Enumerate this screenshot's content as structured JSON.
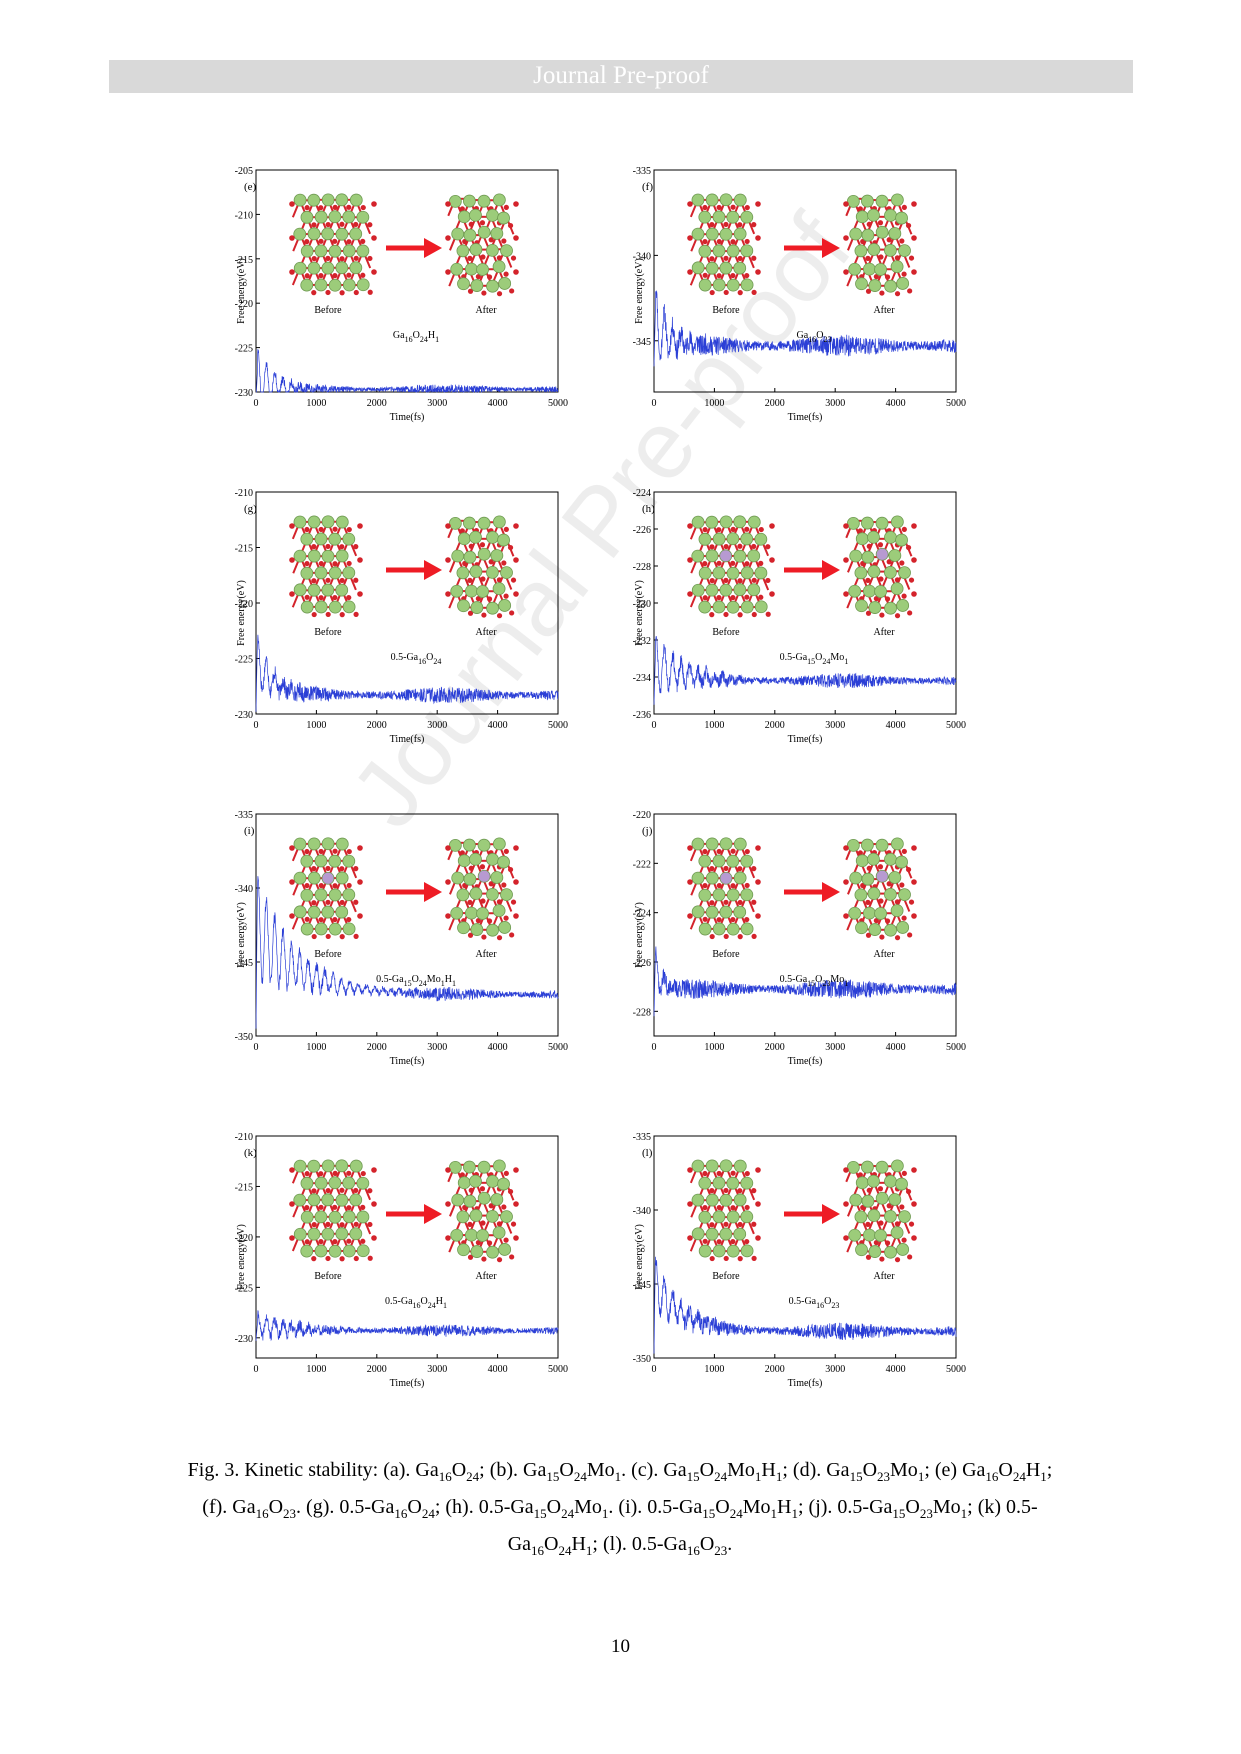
{
  "banner": "Journal Pre-proof",
  "watermark": "Journal Pre-proof",
  "page_number": "10",
  "caption": {
    "html": "Fig. 3. Kinetic stability: (a). Ga<sub>16</sub>O<sub>24</sub>; (b). Ga<sub>15</sub>O<sub>24</sub>Mo<sub>1</sub>. (c). Ga<sub>15</sub>O<sub>24</sub>Mo<sub>1</sub>H<sub>1</sub>; (d). Ga<sub>15</sub>O<sub>23</sub>Mo<sub>1</sub>; (e) Ga<sub>16</sub>O<sub>24</sub>H<sub>1</sub>; (f). Ga<sub>16</sub>O<sub>23</sub>. (g). 0.5-Ga<sub>16</sub>O<sub>24</sub>; (h). 0.5-Ga<sub>15</sub>O<sub>24</sub>Mo<sub>1</sub>. (i). 0.5-Ga<sub>15</sub>O<sub>24</sub>Mo<sub>1</sub>H<sub>1</sub>; (j). 0.5-Ga<sub>15</sub>O<sub>23</sub>Mo<sub>1</sub>; (k) 0.5-Ga<sub>16</sub>O<sub>24</sub>H<sub>1</sub>; (l). 0.5-Ga<sub>16</sub>O<sub>23</sub>."
  },
  "colors": {
    "series": "#2b3fd6",
    "arrow": "#ee1c25",
    "ga_atom": "#9ccc7a",
    "o_atom": "#d4232b",
    "mo_atom": "#b79ad1"
  },
  "inset_labels": {
    "before": "Before",
    "after": "After"
  },
  "chart_data": [
    {
      "id": "e",
      "type": "line",
      "panel_label": "(e)",
      "formula": "Ga<tspan font-size='8' dy='4'>16</tspan><tspan dy='-4'>O</tspan><tspan font-size='8' dy='4'>24</tspan><tspan dy='-4'>H</tspan><tspan font-size='8' dy='4'>1</tspan>",
      "xlabel": "Time(fs)",
      "ylabel": "Free energy(eV)",
      "xlim": [
        0,
        5000
      ],
      "ylim": [
        -230,
        -205
      ],
      "xticks": [
        0,
        1000,
        2000,
        3000,
        4000,
        5000
      ],
      "yticks": [
        -230,
        -225,
        -220,
        -215,
        -210,
        -205
      ],
      "series": {
        "initial": -227.5,
        "final": -229.7,
        "noise": 0.55,
        "transient_amp": 3.5,
        "transient_fs": 320,
        "dip": -231,
        "seed": 5
      }
    },
    {
      "id": "f",
      "type": "line",
      "panel_label": "(f)",
      "formula": "Ga<tspan font-size='8' dy='4'>16</tspan><tspan dy='-4'>O</tspan><tspan font-size='8' dy='4'>23</tspan>",
      "xlabel": "Time(fs)",
      "ylabel": "Free energy(eV)",
      "xlim": [
        0,
        5000
      ],
      "ylim": [
        -348,
        -335
      ],
      "xticks": [
        0,
        1000,
        2000,
        3000,
        4000,
        5000
      ],
      "yticks": [
        -345,
        -340,
        -335
      ],
      "series": {
        "initial": -343,
        "final": -345.3,
        "noise": 0.65,
        "transient_amp": 2.5,
        "transient_fs": 250,
        "dip": -346.5,
        "seed": 11
      }
    },
    {
      "id": "g",
      "type": "line",
      "panel_label": "(g)",
      "formula": "0.5-Ga<tspan font-size='8' dy='4'>16</tspan><tspan dy='-4'>O</tspan><tspan font-size='8' dy='4'>24</tspan>",
      "xlabel": "Time(fs)",
      "ylabel": "Free energy(eV)",
      "xlim": [
        0,
        5000
      ],
      "ylim": [
        -230,
        -210
      ],
      "xticks": [
        0,
        1000,
        2000,
        3000,
        4000,
        5000
      ],
      "yticks": [
        -230,
        -225,
        -220,
        -215,
        -210
      ],
      "series": {
        "initial": -223,
        "final": -228.3,
        "noise": 0.75,
        "transient_amp": 2.5,
        "transient_fs": 300,
        "dip": -229.8,
        "seed": 17
      }
    },
    {
      "id": "h",
      "type": "line",
      "panel_label": "(h)",
      "formula": "0.5-Ga<tspan font-size='8' dy='4'>15</tspan><tspan dy='-4'>O</tspan><tspan font-size='8' dy='4'>24</tspan><tspan dy='-4'>Mo</tspan><tspan font-size='8' dy='4'>1</tspan>",
      "xlabel": "Time(fs)",
      "ylabel": "Free energy(eV)",
      "xlim": [
        0,
        5000
      ],
      "ylim": [
        -236,
        -224
      ],
      "xticks": [
        0,
        1000,
        2000,
        3000,
        4000,
        5000
      ],
      "yticks": [
        -236,
        -234,
        -232,
        -230,
        -228,
        -226,
        -224
      ],
      "series": {
        "initial": -232.6,
        "final": -234.2,
        "noise": 0.4,
        "transient_amp": 1.6,
        "transient_fs": 500,
        "dip": -235.5,
        "seed": 23
      }
    },
    {
      "id": "i",
      "type": "line",
      "panel_label": "(i)",
      "formula": "0.5-Ga<tspan font-size='8' dy='4'>15</tspan><tspan dy='-4'>O</tspan><tspan font-size='8' dy='4'>24</tspan><tspan dy='-4'>Mo</tspan><tspan font-size='8' dy='4'>1</tspan><tspan dy='-4'>H</tspan><tspan font-size='8' dy='4'>1</tspan>",
      "xlabel": "Time(fs)",
      "ylabel": "Free energy(eV)",
      "xlim": [
        0,
        5000
      ],
      "ylim": [
        -350,
        -335
      ],
      "xticks": [
        0,
        1000,
        2000,
        3000,
        4000,
        5000
      ],
      "yticks": [
        -350,
        -345,
        -340,
        -335
      ],
      "series": {
        "initial": -339.5,
        "final": -347.2,
        "noise": 0.45,
        "transient_amp": 3.5,
        "transient_fs": 700,
        "dip": -349.5,
        "seed": 29
      }
    },
    {
      "id": "j",
      "type": "line",
      "panel_label": "(j)",
      "formula": "0.5-Ga<tspan font-size='8' dy='4'>15</tspan><tspan dy='-4'>O</tspan><tspan font-size='8' dy='4'>23</tspan><tspan dy='-4'>Mo</tspan><tspan font-size='8' dy='4'>1</tspan>",
      "xlabel": "Time(fs)",
      "ylabel": "Free energy(eV)",
      "xlim": [
        0,
        5000
      ],
      "ylim": [
        -229,
        -220
      ],
      "xticks": [
        0,
        1000,
        2000,
        3000,
        4000,
        5000
      ],
      "yticks": [
        -228,
        -226,
        -224,
        -222,
        -220
      ],
      "series": {
        "initial": -225.5,
        "final": -227.1,
        "noise": 0.4,
        "transient_amp": 1.2,
        "transient_fs": 120,
        "dip": -228.2,
        "seed": 37
      }
    },
    {
      "id": "k",
      "type": "line",
      "panel_label": "(k)",
      "formula": "0.5-Ga<tspan font-size='8' dy='4'>16</tspan><tspan dy='-4'>O</tspan><tspan font-size='8' dy='4'>24</tspan><tspan dy='-4'>H</tspan><tspan font-size='8' dy='4'>1</tspan>",
      "xlabel": "Time(fs)",
      "ylabel": "Free energy(eV)",
      "xlim": [
        0,
        5000
      ],
      "ylim": [
        -232,
        -210
      ],
      "xticks": [
        0,
        1000,
        2000,
        3000,
        4000,
        5000
      ],
      "yticks": [
        -230,
        -225,
        -220,
        -215,
        -210
      ],
      "series": {
        "initial": -228.5,
        "final": -229.3,
        "noise": 0.6,
        "transient_amp": 1.2,
        "transient_fs": 600,
        "dip": -230.3,
        "seed": 41
      }
    },
    {
      "id": "l",
      "type": "line",
      "panel_label": "(l)",
      "formula": "0.5-Ga<tspan font-size='8' dy='4'>16</tspan><tspan dy='-4'>O</tspan><tspan font-size='8' dy='4'>23</tspan>",
      "xlabel": "Time(fs)",
      "ylabel": "Free energy(eV)",
      "xlim": [
        0,
        5000
      ],
      "ylim": [
        -350,
        -335
      ],
      "xticks": [
        0,
        1000,
        2000,
        3000,
        4000,
        5000
      ],
      "yticks": [
        -350,
        -345,
        -340,
        -335
      ],
      "series": {
        "initial": -342.5,
        "final": -348.2,
        "noise": 0.6,
        "transient_amp": 1.8,
        "transient_fs": 450,
        "dip": -349.7,
        "seed": 53
      }
    }
  ]
}
